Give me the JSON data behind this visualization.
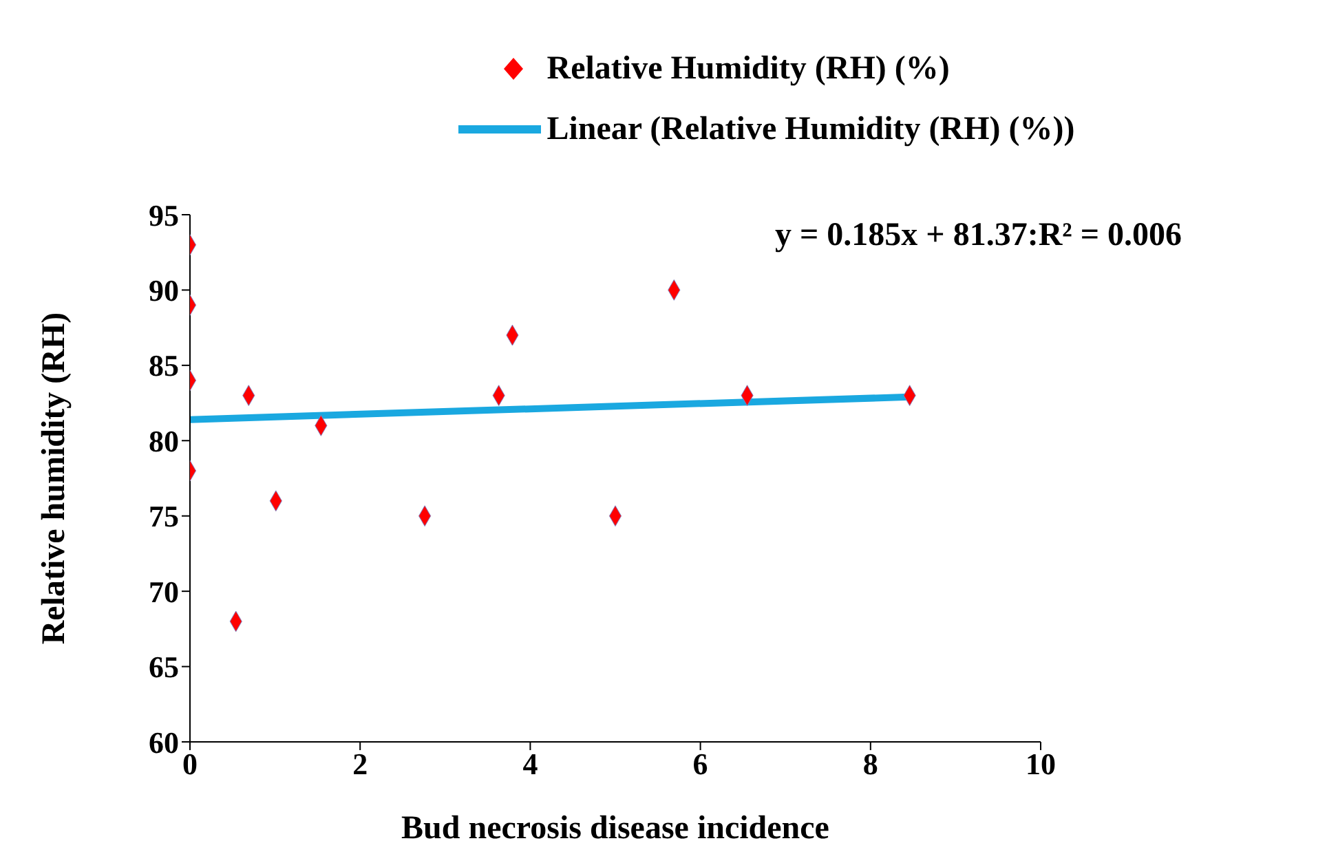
{
  "chart_data": {
    "type": "scatter",
    "xlabel": "Bud necrosis disease incidence",
    "ylabel": "Relative humidity (RH)",
    "series": [
      {
        "name": "Relative Humidity (RH) (%)",
        "color": "#ff0000",
        "marker": "diamond",
        "x": [
          0,
          0,
          0,
          0,
          0.54,
          0.69,
          1.01,
          1.54,
          2.76,
          3.63,
          3.79,
          5.0,
          5.69,
          6.55,
          8.46
        ],
        "values": [
          93,
          89,
          84,
          78,
          68,
          83,
          76,
          81,
          75,
          83,
          87,
          75,
          90,
          83,
          83
        ]
      },
      {
        "name": "Linear (Relative Humidity (RH) (%))",
        "type": "line",
        "color": "#1aa8e0",
        "marker": "none",
        "x": [
          0,
          8.46
        ],
        "values": [
          81.4,
          82.9
        ]
      }
    ],
    "xlim": [
      0,
      10
    ],
    "xticks": [
      0,
      2,
      4,
      6,
      8,
      10
    ],
    "ylim": [
      60,
      95
    ],
    "yticks": [
      60,
      65,
      70,
      75,
      80,
      85,
      90,
      95
    ],
    "grid": false,
    "legend": "top",
    "annotations": [
      "y = 0.185x + 81.37:R² = 0.006"
    ]
  }
}
